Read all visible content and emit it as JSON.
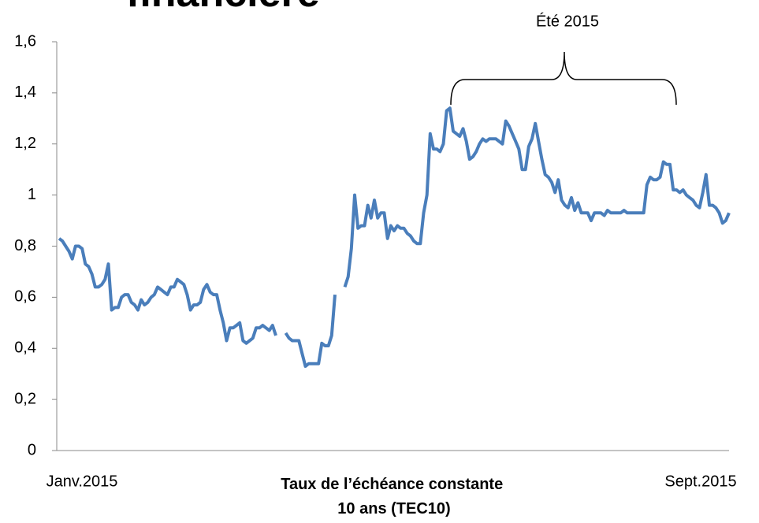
{
  "chart_data": {
    "type": "line",
    "title": "financière",
    "annotation": "Été 2015",
    "xlabel": [
      "Taux de l’échéance constante",
      "10 ans (TEC10)"
    ],
    "categories": [
      "Janv.2015",
      null,
      null,
      null,
      null,
      null,
      null,
      null,
      null,
      null,
      null,
      null,
      null,
      null,
      null,
      null,
      null,
      null,
      null,
      null,
      null,
      null,
      null,
      null,
      null,
      null,
      null,
      null,
      null,
      null,
      null,
      null,
      null,
      null,
      null,
      null,
      null,
      null,
      null,
      null,
      null,
      null,
      null,
      null,
      null,
      null,
      null,
      null,
      null,
      null,
      null,
      null,
      null,
      null,
      null,
      null,
      null,
      null,
      null,
      null,
      null,
      null,
      null,
      null,
      null,
      null,
      null,
      null,
      null,
      null,
      null,
      null,
      null,
      null,
      null,
      null,
      null,
      null,
      null,
      null,
      null,
      null,
      null,
      null,
      null,
      null,
      null,
      null,
      null,
      null,
      null,
      null,
      null,
      null,
      null,
      null,
      null,
      null,
      null,
      null,
      null,
      null,
      null,
      null,
      null,
      null,
      null,
      null,
      null,
      null,
      null,
      null,
      null,
      null,
      null,
      null,
      null,
      null,
      null,
      null,
      null,
      null,
      null,
      null,
      null,
      null,
      null,
      null,
      null,
      null,
      null,
      null,
      null,
      null,
      null,
      null,
      null,
      null,
      null,
      null,
      null,
      null,
      null,
      null,
      null,
      null,
      null,
      null,
      null,
      null,
      null,
      null,
      null,
      null,
      null,
      null,
      null,
      null,
      null,
      null,
      null,
      null,
      null,
      null,
      null,
      null,
      null,
      null,
      null,
      null,
      null,
      null,
      null,
      null,
      null,
      null,
      null,
      null,
      null,
      null,
      null,
      null,
      null,
      null,
      null,
      null,
      null,
      null,
      null,
      null,
      null,
      null,
      null,
      null,
      null,
      null,
      null,
      null,
      null,
      null,
      null,
      null,
      null,
      null,
      "Sept.2015"
    ],
    "series": [
      {
        "color": "#4a7ebb",
        "values": [
          0.83,
          0.82,
          0.8,
          0.78,
          0.75,
          0.8,
          0.8,
          0.79,
          0.73,
          0.72,
          0.69,
          0.64,
          0.64,
          0.65,
          0.67,
          0.73,
          0.55,
          0.56,
          0.56,
          0.6,
          0.61,
          0.61,
          0.58,
          0.57,
          0.55,
          0.59,
          0.57,
          0.58,
          0.6,
          0.61,
          0.64,
          0.63,
          0.62,
          0.61,
          0.64,
          0.64,
          0.67,
          0.66,
          0.65,
          0.61,
          0.55,
          0.57,
          0.57,
          0.58,
          0.63,
          0.65,
          0.62,
          0.61,
          0.61,
          0.55,
          0.5,
          0.43,
          0.48,
          0.48,
          0.49,
          0.5,
          0.43,
          0.42,
          0.43,
          0.44,
          0.48,
          0.48,
          0.49,
          0.48,
          0.47,
          0.49,
          0.45,
          null,
          null,
          0.46,
          0.44,
          0.43,
          0.43,
          0.43,
          0.38,
          0.33,
          0.34,
          0.34,
          0.34,
          0.34,
          0.42,
          0.41,
          0.41,
          0.45,
          0.61,
          null,
          null,
          0.64,
          0.68,
          0.79,
          1.0,
          0.87,
          0.88,
          0.88,
          0.96,
          0.91,
          0.98,
          0.91,
          0.93,
          0.93,
          0.83,
          0.88,
          0.86,
          0.88,
          0.87,
          0.87,
          0.85,
          0.84,
          0.82,
          0.81,
          0.81,
          0.93,
          1.0,
          1.24,
          1.18,
          1.18,
          1.17,
          1.2,
          1.33,
          1.34,
          1.25,
          1.24,
          1.23,
          1.26,
          1.21,
          1.14,
          1.15,
          1.17,
          1.2,
          1.22,
          1.21,
          1.22,
          1.22,
          1.22,
          1.21,
          1.2,
          1.29,
          1.27,
          1.24,
          1.21,
          1.18,
          1.1,
          1.1,
          1.19,
          1.22,
          1.28,
          1.21,
          1.14,
          1.08,
          1.07,
          1.05,
          1.01,
          1.06,
          0.98,
          0.96,
          0.95,
          0.99,
          0.94,
          0.97,
          0.93,
          0.93,
          0.93,
          0.9,
          0.93,
          0.93,
          0.93,
          0.92,
          0.94,
          0.93,
          0.93,
          0.93,
          0.93,
          0.94,
          0.93,
          0.93,
          0.93,
          0.93,
          0.93,
          0.93,
          1.04,
          1.07,
          1.06,
          1.06,
          1.07,
          1.13,
          1.12,
          1.12,
          1.02,
          1.02,
          1.01,
          1.02,
          1.0,
          0.99,
          0.98,
          0.96,
          0.95,
          1.01,
          1.08,
          0.96,
          0.96,
          0.95,
          0.93,
          0.89,
          0.9,
          0.93
        ]
      }
    ],
    "ylim": [
      0,
      1.6
    ],
    "yticks": [
      0,
      {
        "value": 0.2,
        "label": "0,2"
      },
      {
        "value": 0.4,
        "label": "0,4"
      },
      {
        "value": 0.6,
        "label": "0,6"
      },
      {
        "value": 0.8,
        "label": "0,8"
      },
      1,
      {
        "value": 1.2,
        "label": "1,2"
      },
      {
        "value": 1.4,
        "label": "1,4"
      },
      {
        "value": 1.6,
        "label": "1,6"
      }
    ],
    "grid": false
  }
}
